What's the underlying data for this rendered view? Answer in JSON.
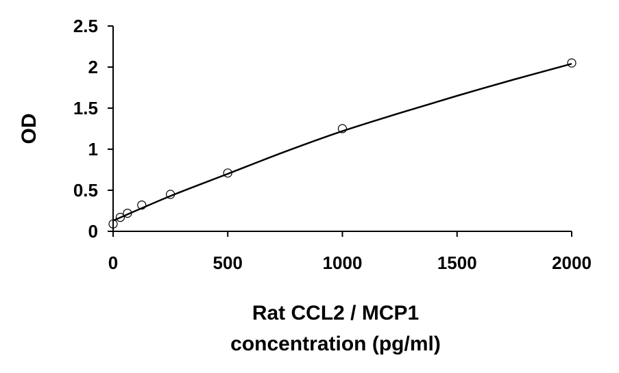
{
  "chart_data": {
    "type": "scatter",
    "title": "",
    "xlabel_lines": [
      "Rat CCL2 / MCP1",
      "concentration (pg/ml)"
    ],
    "ylabel": "OD",
    "xlim": [
      0,
      2000
    ],
    "ylim": [
      0,
      2.5
    ],
    "xticks": [
      0,
      500,
      1000,
      1500,
      2000
    ],
    "yticks": [
      0,
      0.5,
      1,
      1.5,
      2,
      2.5
    ],
    "xtick_labels": [
      "0",
      "500",
      "1000",
      "1500",
      "2000"
    ],
    "ytick_labels": [
      "0",
      "0.5",
      "1",
      "1.5",
      "2",
      "2.5"
    ],
    "grid": false,
    "series": [
      {
        "marker": "open-circle",
        "x": [
          0,
          31.25,
          62.5,
          125,
          250,
          500,
          1000,
          2000
        ],
        "y": [
          0.09,
          0.17,
          0.22,
          0.32,
          0.45,
          0.71,
          1.25,
          2.05
        ]
      }
    ],
    "fit_curve": {
      "style": "solid",
      "x": [
        0,
        250,
        500,
        750,
        1000,
        1250,
        1500,
        1750,
        2000
      ],
      "y": [
        0.13,
        0.43,
        0.7,
        0.97,
        1.22,
        1.44,
        1.65,
        1.85,
        2.04
      ]
    }
  }
}
